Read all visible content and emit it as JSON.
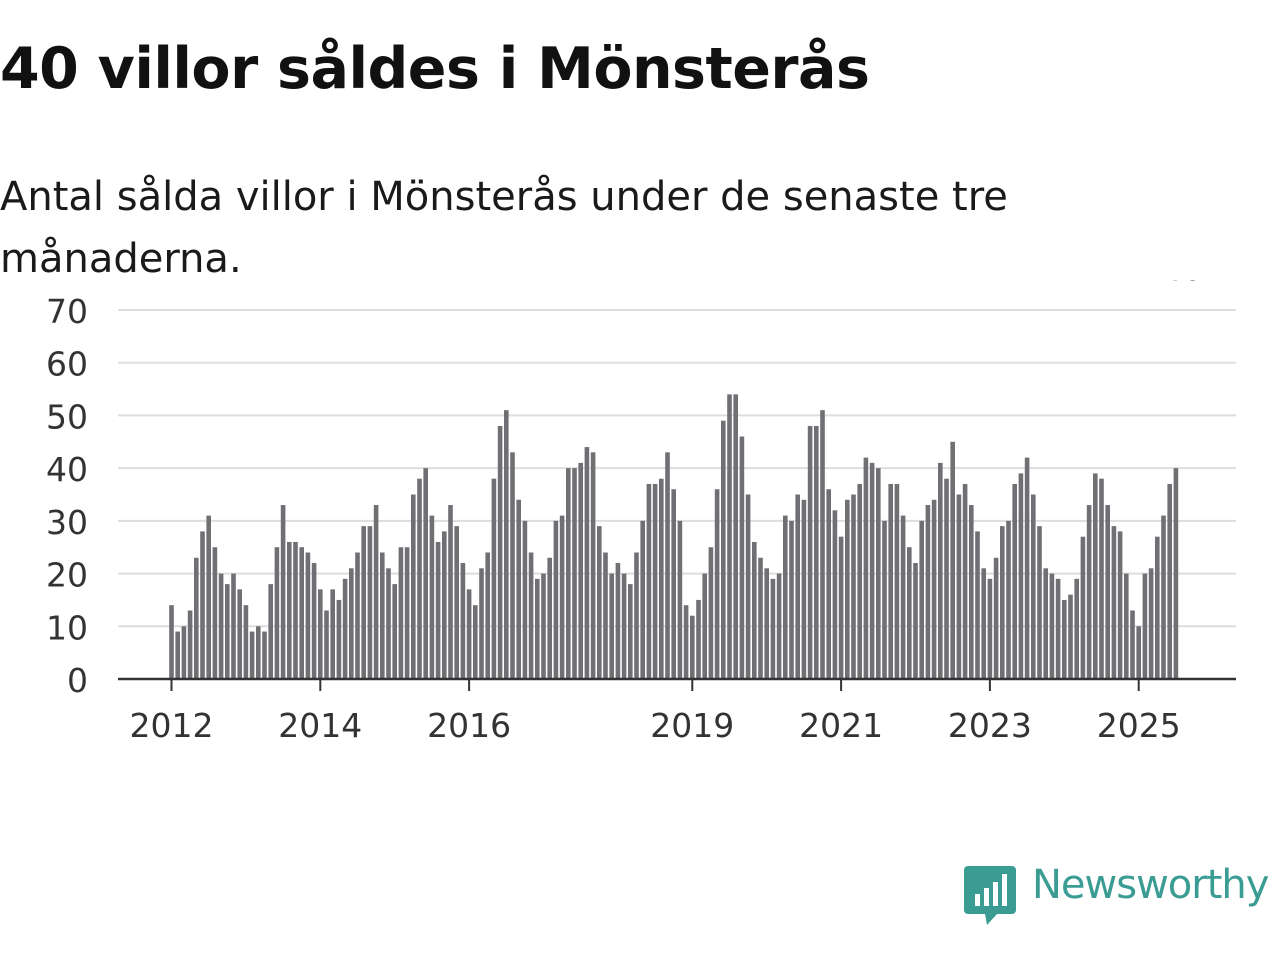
{
  "title": "40 villor såldes i Mönsterås",
  "subtitle": "Antal sålda villor i Mönsterås under de senaste tre månaderna.",
  "brand": {
    "name": "Newsworthy",
    "icon": "newsworthy-logo-icon",
    "color": "#3a9c93"
  },
  "colors": {
    "bar": "#707074",
    "highlight": "#26a69a",
    "grid": "#dddddd",
    "axis": "#333333",
    "text": "#333333"
  },
  "chart_data": {
    "type": "bar",
    "title": "40 villor såldes i Mönsterås",
    "subtitle": "Antal sålda villor i Mönsterås under de senaste tre månaderna.",
    "xlabel": "",
    "ylabel": "",
    "ylim": [
      0,
      70
    ],
    "y_ticks": [
      "0",
      "10",
      "20",
      "30",
      "40",
      "50",
      "60",
      "70"
    ],
    "x_ticks": [
      {
        "label": "2012",
        "index": 0
      },
      {
        "label": "2014",
        "index": 24
      },
      {
        "label": "2016",
        "index": 48
      },
      {
        "label": "2019",
        "index": 84
      },
      {
        "label": "2021",
        "index": 108
      },
      {
        "label": "2023",
        "index": 132
      },
      {
        "label": "2025",
        "index": 156
      }
    ],
    "grid": true,
    "legend": "none",
    "highlight": {
      "index": 163,
      "label": "40"
    },
    "series": [
      {
        "values": [
          14,
          9,
          10,
          13,
          23,
          28,
          31,
          25,
          20,
          18,
          20,
          17,
          14,
          9,
          10,
          9,
          18,
          25,
          33,
          26,
          26,
          25,
          24,
          22,
          17,
          13,
          17,
          15,
          19,
          21,
          24,
          29,
          29,
          33,
          24,
          21,
          18,
          25,
          25,
          35,
          38,
          40,
          31,
          26,
          28,
          33,
          29,
          22,
          17,
          14,
          21,
          24,
          38,
          48,
          51,
          43,
          34,
          30,
          24,
          19,
          20,
          23,
          30,
          31,
          40,
          40,
          41,
          44,
          43,
          29,
          24,
          20,
          22,
          20,
          18,
          24,
          30,
          37,
          37,
          38,
          43,
          36,
          30,
          14,
          12,
          15,
          20,
          25,
          36,
          49,
          54,
          54,
          46,
          35,
          26,
          23,
          21,
          19,
          20,
          31,
          30,
          35,
          34,
          48,
          48,
          51,
          36,
          32,
          27,
          34,
          35,
          37,
          42,
          41,
          40,
          30,
          37,
          37,
          31,
          25,
          22,
          30,
          33,
          34,
          41,
          38,
          45,
          35,
          37,
          33,
          28,
          21,
          19,
          23,
          29,
          30,
          37,
          39,
          42,
          35,
          29,
          21,
          20,
          19,
          15,
          16,
          19,
          27,
          33,
          39,
          38,
          33,
          29,
          28,
          20,
          13,
          10,
          20,
          21,
          27,
          31,
          37,
          40
        ]
      }
    ]
  }
}
